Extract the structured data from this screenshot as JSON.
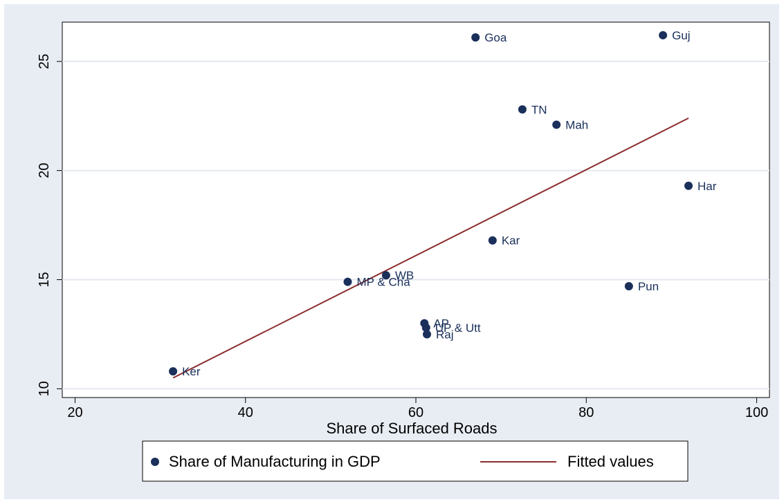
{
  "chart_data": {
    "type": "scatter",
    "xlabel": "Share of Surfaced Roads",
    "ylabel": "",
    "xlim": [
      18.5,
      101.5
    ],
    "ylim": [
      9.6,
      26.8
    ],
    "xticks": [
      20,
      40,
      60,
      80,
      100
    ],
    "yticks": [
      10,
      15,
      20,
      25
    ],
    "grid": "horizontal",
    "legend_position": "bottom",
    "colors": {
      "points": "#1a2f5a",
      "fit": "#8b2c2c",
      "gridline": "#ffffff",
      "plot_bg": "#ffffff",
      "outer_bg": "#e8edf3"
    },
    "series": [
      {
        "name": "Share of Manufacturing in GDP",
        "kind": "scatter",
        "points": [
          {
            "label": "Goa",
            "x": 67.0,
            "y": 26.1
          },
          {
            "label": "Guj",
            "x": 89.0,
            "y": 26.2
          },
          {
            "label": "TN",
            "x": 72.5,
            "y": 22.8
          },
          {
            "label": "Mah",
            "x": 76.5,
            "y": 22.1
          },
          {
            "label": "Har",
            "x": 92.0,
            "y": 19.3
          },
          {
            "label": "Kar",
            "x": 69.0,
            "y": 16.8
          },
          {
            "label": "WB",
            "x": 56.5,
            "y": 15.2
          },
          {
            "label": "MP & Cha",
            "x": 52.0,
            "y": 14.9
          },
          {
            "label": "Pun",
            "x": 85.0,
            "y": 14.7
          },
          {
            "label": "AP",
            "x": 61.0,
            "y": 13.0
          },
          {
            "label": "UP & Utt",
            "x": 61.2,
            "y": 12.8
          },
          {
            "label": "Raj",
            "x": 61.3,
            "y": 12.5
          },
          {
            "label": "Ker",
            "x": 31.5,
            "y": 10.8
          }
        ]
      },
      {
        "name": "Fitted values",
        "kind": "line",
        "points": [
          {
            "x": 31.5,
            "y": 10.5
          },
          {
            "x": 92.0,
            "y": 22.4
          }
        ]
      }
    ]
  }
}
